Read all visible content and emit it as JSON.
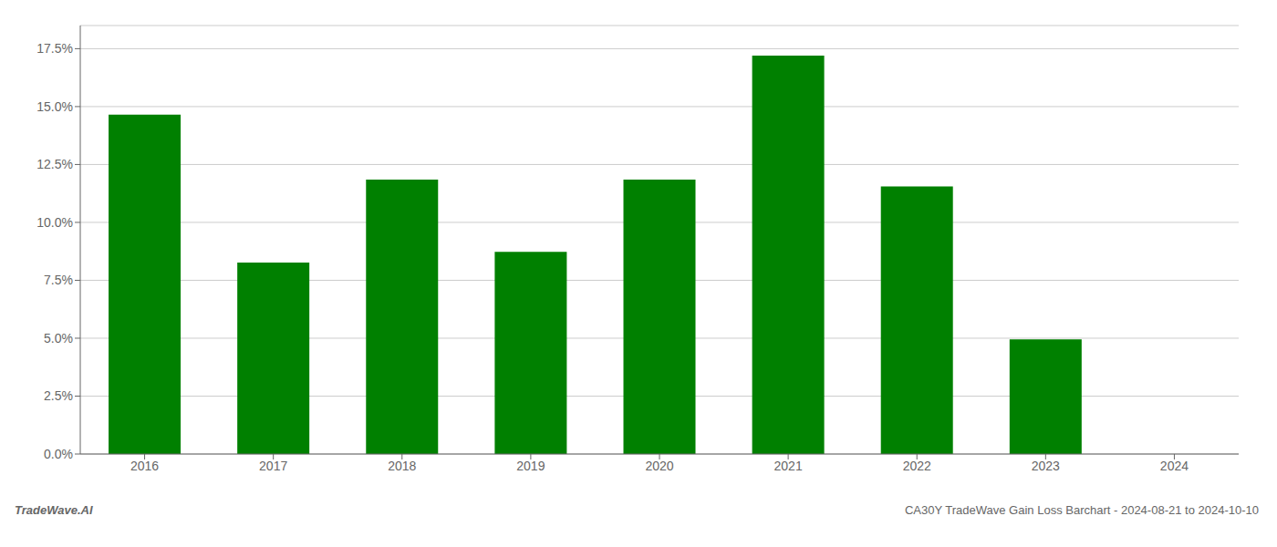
{
  "chart_data": {
    "type": "bar",
    "categories": [
      "2016",
      "2017",
      "2018",
      "2019",
      "2020",
      "2021",
      "2022",
      "2023",
      "2024"
    ],
    "values": [
      0.1465,
      0.0827,
      0.1185,
      0.0873,
      0.1185,
      0.172,
      0.1155,
      0.0495,
      0.0
    ],
    "color": "#008000",
    "ylim": [
      0,
      0.185
    ],
    "yticks": [
      {
        "value": 0.0,
        "label": "0.0%"
      },
      {
        "value": 0.025,
        "label": "2.5%"
      },
      {
        "value": 0.05,
        "label": "5.0%"
      },
      {
        "value": 0.075,
        "label": "7.5%"
      },
      {
        "value": 0.1,
        "label": "10.0%"
      },
      {
        "value": 0.125,
        "label": "12.5%"
      },
      {
        "value": 0.15,
        "label": "15.0%"
      },
      {
        "value": 0.175,
        "label": "17.5%"
      }
    ],
    "grid": true,
    "annotations": [
      "TradeWave.AI",
      "CA30Y TradeWave Gain Loss Barchart - 2024-08-21 to 2024-10-10"
    ]
  }
}
